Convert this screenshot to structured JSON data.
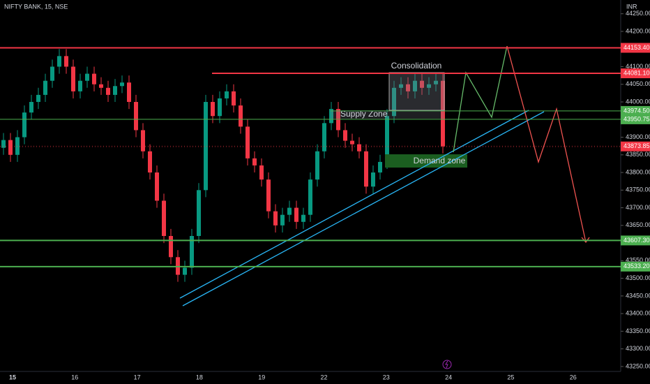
{
  "chart_data": {
    "type": "candlestick",
    "title": "NIFTY BANK, 15, NSE",
    "currency": "INR",
    "categories": [
      "15",
      "16",
      "17",
      "18",
      "19",
      "22",
      "23",
      "24",
      "25",
      "26"
    ],
    "ylim": [
      43236,
      44289
    ],
    "yticks": [
      {
        "value": 44250,
        "label": "44250.00"
      },
      {
        "value": 44200,
        "label": "44200.00"
      },
      {
        "value": 44150,
        "label": "44150.00"
      },
      {
        "value": 44100,
        "label": "44100.00"
      },
      {
        "value": 44050,
        "label": "44050.00"
      },
      {
        "value": 44000,
        "label": "44000.00"
      },
      {
        "value": 43950,
        "label": "43950.00"
      },
      {
        "value": 43900,
        "label": "43900.00"
      },
      {
        "value": 43850,
        "label": "43850.00"
      },
      {
        "value": 43800,
        "label": "43800.00"
      },
      {
        "value": 43750,
        "label": "43750.00"
      },
      {
        "value": 43700,
        "label": "43700.00"
      },
      {
        "value": 43650,
        "label": "43650.00"
      },
      {
        "value": 43600,
        "label": "43600.00"
      },
      {
        "value": 43550,
        "label": "43550.00"
      },
      {
        "value": 43500,
        "label": "43500.00"
      },
      {
        "value": 43450,
        "label": "43450.00"
      },
      {
        "value": 43400,
        "label": "43400.00"
      },
      {
        "value": 43350,
        "label": "43350.00"
      },
      {
        "value": 43300,
        "label": "43300.00"
      },
      {
        "value": 43250,
        "label": "43250.00"
      }
    ],
    "up_color": "#089981",
    "down_color": "#f23645",
    "candles": [
      [
        43870,
        43912,
        43850,
        43892
      ],
      [
        43892,
        43912,
        43830,
        43850
      ],
      [
        43850,
        43920,
        43830,
        43900
      ],
      [
        43900,
        43990,
        43880,
        43970
      ],
      [
        43970,
        44020,
        43950,
        44000
      ],
      [
        44000,
        44040,
        43980,
        44020
      ],
      [
        44020,
        44080,
        44000,
        44060
      ],
      [
        44060,
        44120,
        44040,
        44100
      ],
      [
        44100,
        44150,
        44080,
        44130
      ],
      [
        44130,
        44150,
        44080,
        44100
      ],
      [
        44100,
        44120,
        44010,
        44030
      ],
      [
        44030,
        44080,
        44010,
        44060
      ],
      [
        44060,
        44100,
        44040,
        44080
      ],
      [
        44080,
        44100,
        44030,
        44050
      ],
      [
        44050,
        44070,
        44020,
        44040
      ],
      [
        44040,
        44060,
        44000,
        44020
      ],
      [
        44020,
        44065,
        44000,
        44045
      ],
      [
        44045,
        44075,
        44025,
        44055
      ],
      [
        44055,
        44075,
        43980,
        44000
      ],
      [
        44000,
        44020,
        43900,
        43920
      ],
      [
        43920,
        43940,
        43840,
        43860
      ],
      [
        43860,
        43880,
        43780,
        43800
      ],
      [
        43800,
        43820,
        43700,
        43720
      ],
      [
        43720,
        43740,
        43600,
        43620
      ],
      [
        43620,
        43640,
        43540,
        43560
      ],
      [
        43560,
        43580,
        43490,
        43510
      ],
      [
        43510,
        43550,
        43490,
        43530
      ],
      [
        43530,
        43640,
        43510,
        43620
      ],
      [
        43620,
        43770,
        43600,
        43750
      ],
      [
        43750,
        44020,
        43730,
        44000
      ],
      [
        44000,
        44020,
        43940,
        43960
      ],
      [
        43960,
        44030,
        43940,
        44010
      ],
      [
        44010,
        44050,
        43990,
        44030
      ],
      [
        44030,
        44050,
        43970,
        43990
      ],
      [
        43990,
        44010,
        43910,
        43930
      ],
      [
        43930,
        43950,
        43820,
        43840
      ],
      [
        43840,
        43860,
        43800,
        43820
      ],
      [
        43820,
        43840,
        43760,
        43780
      ],
      [
        43780,
        43800,
        43670,
        43690
      ],
      [
        43690,
        43710,
        43630,
        43650
      ],
      [
        43650,
        43700,
        43630,
        43680
      ],
      [
        43680,
        43720,
        43660,
        43700
      ],
      [
        43700,
        43720,
        43640,
        43660
      ],
      [
        43660,
        43700,
        43640,
        43680
      ],
      [
        43680,
        43800,
        43660,
        43780
      ],
      [
        43780,
        43880,
        43760,
        43860
      ],
      [
        43860,
        43960,
        43840,
        43940
      ],
      [
        43940,
        44000,
        43920,
        43980
      ],
      [
        43980,
        44000,
        43900,
        43920
      ],
      [
        43920,
        43940,
        43870,
        43890
      ],
      [
        43890,
        43910,
        43860,
        43880
      ],
      [
        43880,
        43900,
        43840,
        43860
      ],
      [
        43860,
        43880,
        43740,
        43760
      ],
      [
        43760,
        43820,
        43740,
        43800
      ],
      [
        43800,
        43850,
        43780,
        43830
      ],
      [
        43830,
        43980,
        43810,
        43960
      ],
      [
        43960,
        44060,
        43940,
        44040
      ],
      [
        44040,
        44070,
        44020,
        44050
      ],
      [
        44050,
        44070,
        44010,
        44030
      ],
      [
        44030,
        44080,
        44010,
        44060
      ],
      [
        44060,
        44080,
        44020,
        44040
      ],
      [
        44040,
        44070,
        44020,
        44050
      ],
      [
        44050,
        44080,
        44030,
        44060
      ],
      [
        44060,
        44080,
        43854,
        43874
      ]
    ],
    "levels": [
      {
        "value": 44153.4,
        "label": "44153.40",
        "color": "#f23645"
      },
      {
        "value": 44081.1,
        "label": "44081.10",
        "color": "#f23645"
      },
      {
        "value": 43974.5,
        "label": "43974.50",
        "color": "#4caf50"
      },
      {
        "value": 43950.75,
        "label": "43950.75",
        "color": "#4caf50"
      },
      {
        "value": 43873.85,
        "label": "43873.85",
        "color": "#f23645"
      },
      {
        "value": 43607.3,
        "label": "43607.30",
        "color": "#4caf50"
      },
      {
        "value": 43533.2,
        "label": "43533.20",
        "color": "#4caf50"
      }
    ],
    "annotations": {
      "consolidation": "Consolidation",
      "supply": "Supply Zone",
      "demand": "Demand zone"
    }
  }
}
